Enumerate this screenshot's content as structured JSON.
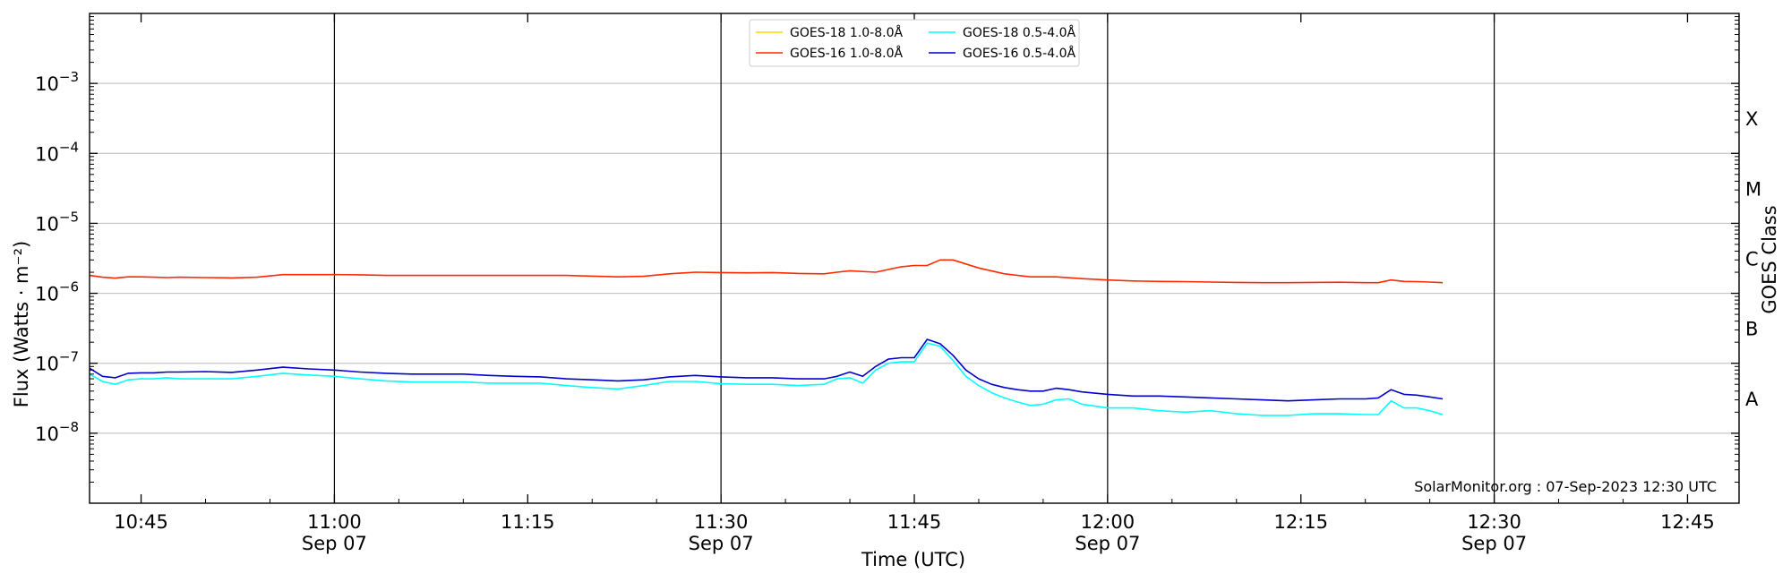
{
  "chart_data": {
    "type": "line",
    "xlabel": "Time (UTC)",
    "ylabel": "Flux (Watts · m⁻²)",
    "ylabel_right": "GOES Class",
    "xlim": [
      "10:41",
      "12:49"
    ],
    "ylim": [
      1e-09,
      0.01
    ],
    "y_scale": "log",
    "x_ticks": [
      {
        "time": "10:45",
        "label": "10:45",
        "sublabel": ""
      },
      {
        "time": "11:00",
        "label": "11:00",
        "sublabel": "Sep 07"
      },
      {
        "time": "11:15",
        "label": "11:15",
        "sublabel": ""
      },
      {
        "time": "11:30",
        "label": "11:30",
        "sublabel": "Sep 07"
      },
      {
        "time": "11:45",
        "label": "11:45",
        "sublabel": ""
      },
      {
        "time": "12:00",
        "label": "12:00",
        "sublabel": "Sep 07"
      },
      {
        "time": "12:15",
        "label": "12:15",
        "sublabel": ""
      },
      {
        "time": "12:30",
        "label": "12:30",
        "sublabel": "Sep 07"
      },
      {
        "time": "12:45",
        "label": "12:45",
        "sublabel": ""
      }
    ],
    "vertical_lines": [
      "11:00",
      "11:30",
      "12:00",
      "12:30"
    ],
    "y_ticks": [
      {
        "value": 1e-08,
        "base": "10",
        "exp": "−8"
      },
      {
        "value": 1e-07,
        "base": "10",
        "exp": "−7"
      },
      {
        "value": 1e-06,
        "base": "10",
        "exp": "−6"
      },
      {
        "value": 1e-05,
        "base": "10",
        "exp": "−5"
      },
      {
        "value": 0.0001,
        "base": "10",
        "exp": "−4"
      },
      {
        "value": 0.001,
        "base": "10",
        "exp": "−3"
      }
    ],
    "goes_classes": [
      {
        "label": "A",
        "value": 3.16e-08
      },
      {
        "label": "B",
        "value": 3.16e-07
      },
      {
        "label": "C",
        "value": 3.16e-06
      },
      {
        "label": "M",
        "value": 3.16e-05
      },
      {
        "label": "X",
        "value": 0.000316
      }
    ],
    "grid": "horizontal",
    "legend_position": "top-center",
    "watermark": "SolarMonitor.org : 07-Sep-2023 12:30 UTC",
    "series": [
      {
        "name": "GOES-18 1.0-8.0Å",
        "color": "#FFD700",
        "x": [],
        "y": []
      },
      {
        "name": "GOES-16 1.0-8.0Å",
        "color": "#FF2A00",
        "x": [
          "10:41",
          "10:42",
          "10:43",
          "10:44",
          "10:45",
          "10:46",
          "10:47",
          "10:48",
          "10:50",
          "10:52",
          "10:54",
          "10:56",
          "10:58",
          "11:00",
          "11:02",
          "11:04",
          "11:06",
          "11:08",
          "11:10",
          "11:14",
          "11:18",
          "11:22",
          "11:24",
          "11:26",
          "11:28",
          "11:30",
          "11:32",
          "11:34",
          "11:36",
          "11:38",
          "11:39",
          "11:40",
          "11:42",
          "11:44",
          "11:45",
          "11:46",
          "11:47",
          "11:48",
          "11:50",
          "11:52",
          "11:54",
          "11:56",
          "11:58",
          "12:00",
          "12:02",
          "12:04",
          "12:06",
          "12:08",
          "12:10",
          "12:12",
          "12:14",
          "12:16",
          "12:18",
          "12:20",
          "12:21",
          "12:22",
          "12:23",
          "12:24",
          "12:25",
          "12:26"
        ],
        "y": [
          1.8e-06,
          1.7e-06,
          1.65e-06,
          1.72e-06,
          1.72e-06,
          1.7e-06,
          1.68e-06,
          1.7e-06,
          1.68e-06,
          1.66e-06,
          1.7e-06,
          1.85e-06,
          1.85e-06,
          1.85e-06,
          1.84e-06,
          1.8e-06,
          1.8e-06,
          1.8e-06,
          1.8e-06,
          1.8e-06,
          1.8e-06,
          1.72e-06,
          1.75e-06,
          1.9e-06,
          2e-06,
          1.98e-06,
          1.96e-06,
          1.98e-06,
          1.92e-06,
          1.9e-06,
          2e-06,
          2.1e-06,
          2e-06,
          2.4e-06,
          2.5e-06,
          2.5e-06,
          3e-06,
          3e-06,
          2.3e-06,
          1.9e-06,
          1.72e-06,
          1.72e-06,
          1.62e-06,
          1.55e-06,
          1.5e-06,
          1.48e-06,
          1.47e-06,
          1.45e-06,
          1.43e-06,
          1.42e-06,
          1.42e-06,
          1.43e-06,
          1.44e-06,
          1.42e-06,
          1.42e-06,
          1.55e-06,
          1.48e-06,
          1.47e-06,
          1.45e-06,
          1.42e-06
        ]
      },
      {
        "name": "GOES-18 0.5-4.0Å",
        "color": "#00FFFF",
        "x": [
          "10:41",
          "10:42",
          "10:43",
          "10:44",
          "10:45",
          "10:46",
          "10:47",
          "10:48",
          "10:50",
          "10:52",
          "10:54",
          "10:56",
          "10:58",
          "11:00",
          "11:02",
          "11:04",
          "11:06",
          "11:08",
          "11:10",
          "11:12",
          "11:14",
          "11:16",
          "11:18",
          "11:20",
          "11:22",
          "11:24",
          "11:26",
          "11:28",
          "11:30",
          "11:32",
          "11:34",
          "11:36",
          "11:38",
          "11:39",
          "11:40",
          "11:41",
          "11:42",
          "11:43",
          "11:44",
          "11:45",
          "11:46",
          "11:47",
          "11:48",
          "11:49",
          "11:50",
          "11:51",
          "11:52",
          "11:53",
          "11:54",
          "11:55",
          "11:56",
          "11:57",
          "11:58",
          "12:00",
          "12:02",
          "12:04",
          "12:06",
          "12:08",
          "12:10",
          "12:12",
          "12:14",
          "12:16",
          "12:18",
          "12:20",
          "12:21",
          "12:22",
          "12:23",
          "12:24",
          "12:25",
          "12:26"
        ],
        "y": [
          7e-08,
          5.5e-08,
          5e-08,
          5.8e-08,
          6e-08,
          6e-08,
          6.2e-08,
          6e-08,
          6e-08,
          6e-08,
          6.5e-08,
          7.2e-08,
          6.8e-08,
          6.5e-08,
          6e-08,
          5.6e-08,
          5.4e-08,
          5.4e-08,
          5.4e-08,
          5.2e-08,
          5.2e-08,
          5.2e-08,
          4.8e-08,
          4.5e-08,
          4.3e-08,
          4.8e-08,
          5.5e-08,
          5.5e-08,
          5.1e-08,
          5e-08,
          5e-08,
          4.8e-08,
          5e-08,
          6e-08,
          6.2e-08,
          5.2e-08,
          8e-08,
          1e-07,
          1.05e-07,
          1.05e-07,
          1.95e-07,
          1.75e-07,
          1.1e-07,
          6.5e-08,
          4.8e-08,
          3.8e-08,
          3.2e-08,
          2.8e-08,
          2.5e-08,
          2.6e-08,
          3e-08,
          3.1e-08,
          2.6e-08,
          2.3e-08,
          2.3e-08,
          2.1e-08,
          2e-08,
          2.1e-08,
          1.9e-08,
          1.8e-08,
          1.8e-08,
          1.9e-08,
          1.9e-08,
          1.85e-08,
          1.85e-08,
          2.9e-08,
          2.3e-08,
          2.3e-08,
          2.1e-08,
          1.85e-08
        ]
      },
      {
        "name": "GOES-16 0.5-4.0Å",
        "color": "#0000CC",
        "x": [
          "10:41",
          "10:42",
          "10:43",
          "10:44",
          "10:45",
          "10:46",
          "10:47",
          "10:48",
          "10:50",
          "10:52",
          "10:54",
          "10:56",
          "10:58",
          "11:00",
          "11:02",
          "11:04",
          "11:06",
          "11:08",
          "11:10",
          "11:12",
          "11:14",
          "11:16",
          "11:18",
          "11:20",
          "11:22",
          "11:24",
          "11:26",
          "11:28",
          "11:30",
          "11:32",
          "11:34",
          "11:36",
          "11:38",
          "11:39",
          "11:40",
          "11:41",
          "11:42",
          "11:43",
          "11:44",
          "11:45",
          "11:46",
          "11:47",
          "11:48",
          "11:49",
          "11:50",
          "11:51",
          "11:52",
          "11:53",
          "11:54",
          "11:55",
          "11:56",
          "11:57",
          "11:58",
          "12:00",
          "12:02",
          "12:04",
          "12:06",
          "12:08",
          "12:10",
          "12:12",
          "12:14",
          "12:16",
          "12:18",
          "12:20",
          "12:21",
          "12:22",
          "12:23",
          "12:24",
          "12:25",
          "12:26"
        ],
        "y": [
          8.5e-08,
          6.5e-08,
          6.2e-08,
          7.2e-08,
          7.3e-08,
          7.3e-08,
          7.5e-08,
          7.5e-08,
          7.6e-08,
          7.4e-08,
          8e-08,
          8.8e-08,
          8.3e-08,
          8e-08,
          7.5e-08,
          7.2e-08,
          7e-08,
          7e-08,
          7e-08,
          6.7e-08,
          6.5e-08,
          6.4e-08,
          6e-08,
          5.8e-08,
          5.6e-08,
          5.8e-08,
          6.4e-08,
          6.7e-08,
          6.4e-08,
          6.2e-08,
          6.2e-08,
          6e-08,
          6e-08,
          6.5e-08,
          7.5e-08,
          6.5e-08,
          9e-08,
          1.15e-07,
          1.2e-07,
          1.2e-07,
          2.2e-07,
          1.9e-07,
          1.3e-07,
          8e-08,
          6e-08,
          5e-08,
          4.5e-08,
          4.2e-08,
          4e-08,
          4e-08,
          4.4e-08,
          4.2e-08,
          3.9e-08,
          3.6e-08,
          3.4e-08,
          3.4e-08,
          3.3e-08,
          3.2e-08,
          3.1e-08,
          3e-08,
          2.9e-08,
          3e-08,
          3.1e-08,
          3.1e-08,
          3.2e-08,
          4.2e-08,
          3.6e-08,
          3.5e-08,
          3.3e-08,
          3.1e-08
        ]
      }
    ]
  }
}
